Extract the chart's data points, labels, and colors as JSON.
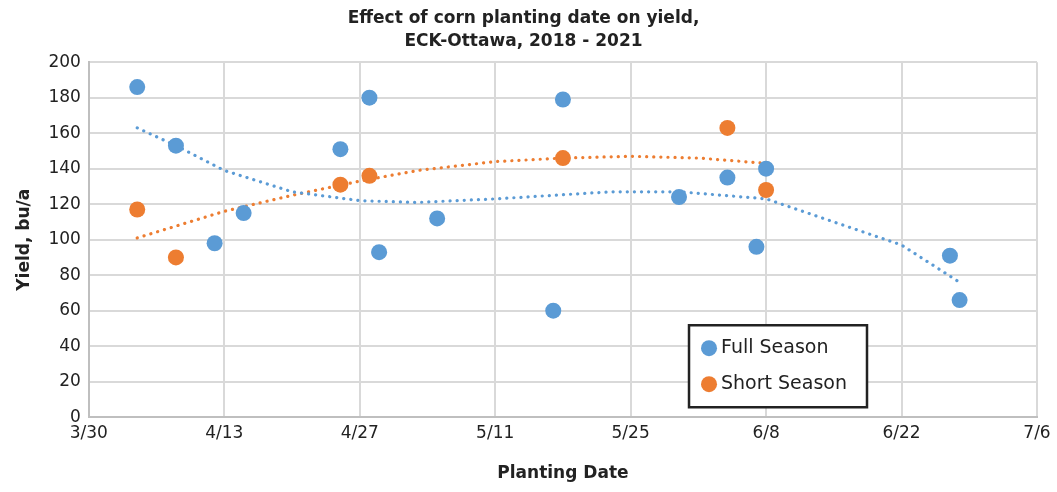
{
  "chart_data": {
    "type": "scatter",
    "title": "Effect of corn planting date on yield,\nECK-Ottawa, 2018 - 2021",
    "xlabel": "Planting Date",
    "ylabel": "Yield, bu/a",
    "xlim": [
      "--03-30",
      "--07-06"
    ],
    "xticks": [
      {
        "value": "--03-30",
        "label": "3/30"
      },
      {
        "value": "--04-13",
        "label": "4/13"
      },
      {
        "value": "--04-27",
        "label": "4/27"
      },
      {
        "value": "--05-11",
        "label": "5/11"
      },
      {
        "value": "--05-25",
        "label": "5/25"
      },
      {
        "value": "--06-08",
        "label": "6/8"
      },
      {
        "value": "--06-22",
        "label": "6/22"
      },
      {
        "value": "--07-06",
        "label": "7/6"
      }
    ],
    "ylim": [
      0,
      200
    ],
    "yticks": [
      0,
      20,
      40,
      60,
      80,
      100,
      120,
      140,
      160,
      180,
      200
    ],
    "grid": true,
    "legend": "bottom right",
    "marker": "circle",
    "series": [
      {
        "name": "Full Season",
        "color": "#5b9bd5",
        "x": [
          "--04-04",
          "--04-08",
          "--04-12",
          "--04-15",
          "--04-25",
          "--04-28",
          "--04-29",
          "--05-05",
          "--05-17",
          "--05-18",
          "--05-30",
          "--06-04",
          "--06-07",
          "--06-08",
          "--06-27",
          "--06-28"
        ],
        "values": [
          186,
          153,
          98,
          115,
          151,
          180,
          93,
          112,
          60,
          179,
          124,
          135,
          96,
          140,
          91,
          66
        ]
      },
      {
        "name": "Short Season",
        "color": "#ed7d31",
        "x": [
          "--04-04",
          "--04-08",
          "--04-25",
          "--04-28",
          "--05-18",
          "--06-04",
          "--06-08"
        ],
        "values": [
          117,
          90,
          131,
          136,
          146,
          163,
          128
        ]
      },
      {
        "type": "line",
        "color": "#5b9bd5",
        "line_style": "dotted",
        "marker": "none",
        "x": [
          "--04-04",
          "--04-08",
          "--04-13",
          "--04-20",
          "--04-27",
          "--05-03",
          "--05-11",
          "--05-23",
          "--05-30",
          "--06-08",
          "--06-22",
          "--06-28"
        ],
        "values": [
          163,
          153,
          139,
          127,
          122,
          121,
          123,
          127,
          127,
          123,
          97,
          76
        ]
      },
      {
        "type": "line",
        "color": "#ed7d31",
        "line_style": "dotted",
        "marker": "none",
        "x": [
          "--04-04",
          "--04-13",
          "--04-20",
          "--04-27",
          "--05-03",
          "--05-11",
          "--05-18",
          "--05-25",
          "--06-01",
          "--06-08"
        ],
        "values": [
          101,
          116,
          125,
          133,
          139,
          144,
          146,
          147,
          146,
          143
        ]
      }
    ]
  }
}
